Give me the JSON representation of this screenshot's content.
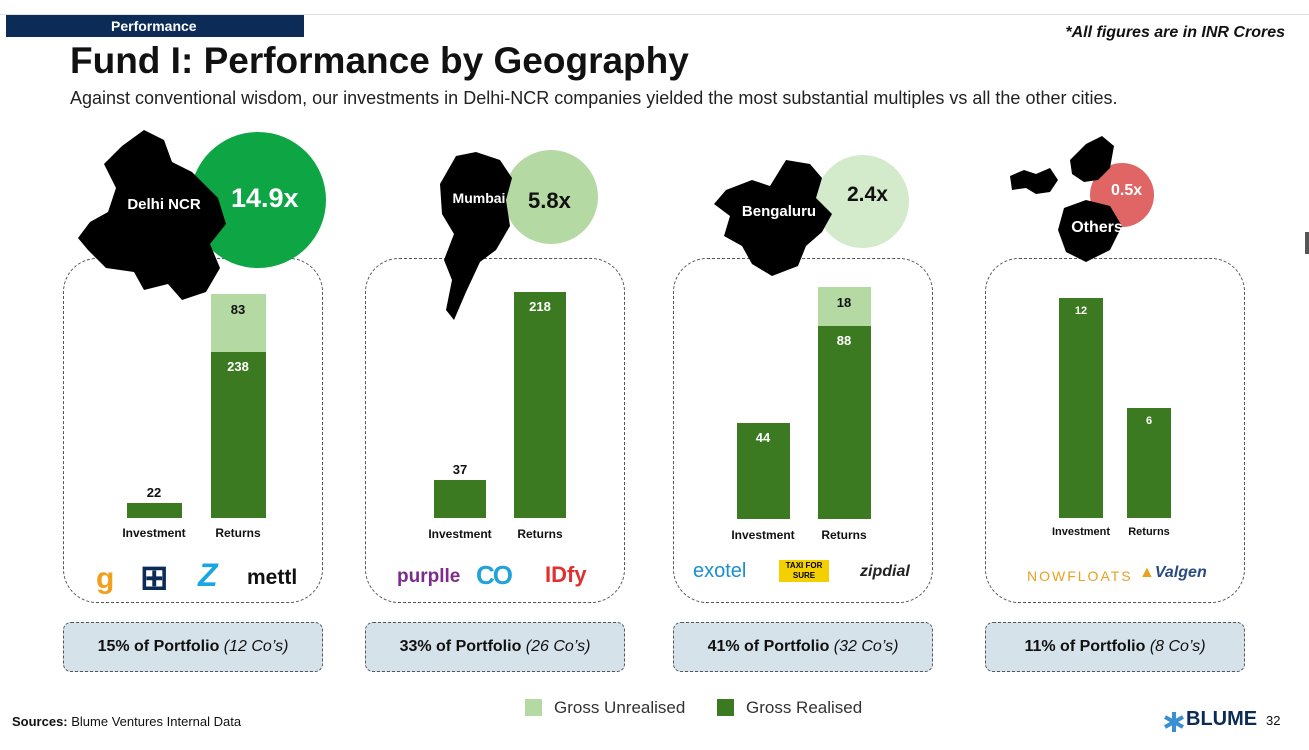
{
  "header": {
    "tag": "Performance",
    "note": "*All figures are in INR Crores"
  },
  "title": "Fund I: Performance by Geography",
  "subtitle": "Against conventional wisdom, our investments in Delhi-NCR companies yielded the most substantial multiples vs all the other cities.",
  "axis_labels": {
    "investment": "Investment",
    "returns": "Returns"
  },
  "colors": {
    "realised": "#3c7a21",
    "unrealised": "#b5d9a3",
    "navy": "#0c2c57"
  },
  "chart_data": [
    {
      "type": "bar",
      "city": "Delhi NCR",
      "multiple": "14.9x",
      "categories": [
        "Investment",
        "Returns"
      ],
      "series": [
        {
          "name": "Gross Realised",
          "values": [
            22,
            238
          ]
        },
        {
          "name": "Gross Unrealised",
          "values": [
            0,
            83
          ]
        }
      ],
      "portfolio_share": "15% of Portfolio",
      "companies": "(12 Co’s)",
      "logos": [
        "g",
        "⊞",
        "Z",
        "mettl"
      ]
    },
    {
      "type": "bar",
      "city": "Mumbai",
      "multiple": "5.8x",
      "categories": [
        "Investment",
        "Returns"
      ],
      "series": [
        {
          "name": "Gross Realised",
          "values": [
            37,
            218
          ]
        },
        {
          "name": "Gross Unrealised",
          "values": [
            0,
            0
          ]
        }
      ],
      "portfolio_share": "33% of Portfolio",
      "companies": "(26 Co’s)",
      "logos": [
        "purplle",
        "CO",
        "IDfy"
      ]
    },
    {
      "type": "bar",
      "city": "Bengaluru",
      "multiple": "2.4x",
      "categories": [
        "Investment",
        "Returns"
      ],
      "series": [
        {
          "name": "Gross Realised",
          "values": [
            44,
            88
          ]
        },
        {
          "name": "Gross Unrealised",
          "values": [
            0,
            18
          ]
        }
      ],
      "portfolio_share": "41% of Portfolio",
      "companies": "(32 Co’s)",
      "logos": [
        "exotel",
        "TAXI FOR SURE",
        "zipdial"
      ]
    },
    {
      "type": "bar",
      "city": "Others",
      "multiple": "0.5x",
      "categories": [
        "Investment",
        "Returns"
      ],
      "series": [
        {
          "name": "Gross Realised",
          "values": [
            12,
            6
          ]
        },
        {
          "name": "Gross Unrealised",
          "values": [
            0,
            0
          ]
        }
      ],
      "portfolio_share": "11% of Portfolio",
      "companies": "(8 Co’s)",
      "logos": [
        "NOWFLOATS",
        "Valgen"
      ]
    }
  ],
  "legend": {
    "unrealised": "Gross Unrealised",
    "realised": "Gross Realised"
  },
  "footer": {
    "sources_label": "Sources:",
    "sources_text": " Blume Ventures Internal Data",
    "brand": "BLUME",
    "page": "32"
  }
}
